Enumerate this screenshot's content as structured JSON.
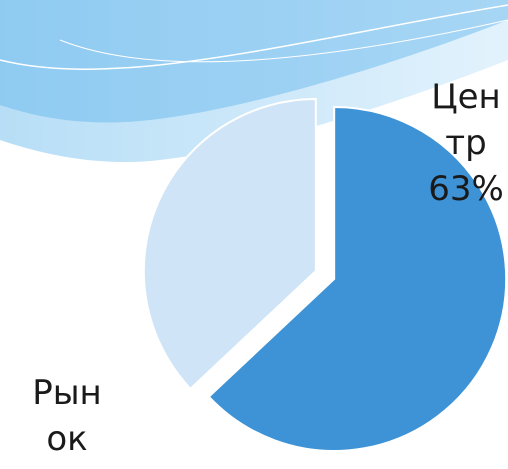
{
  "chart_data": {
    "type": "pie",
    "categories": [
      "Центр",
      "Рынок"
    ],
    "values": [
      63,
      37
    ],
    "value_labels": [
      "63%",
      null
    ],
    "colors": [
      "#3d93d6",
      "#cfe4f7"
    ]
  }
}
